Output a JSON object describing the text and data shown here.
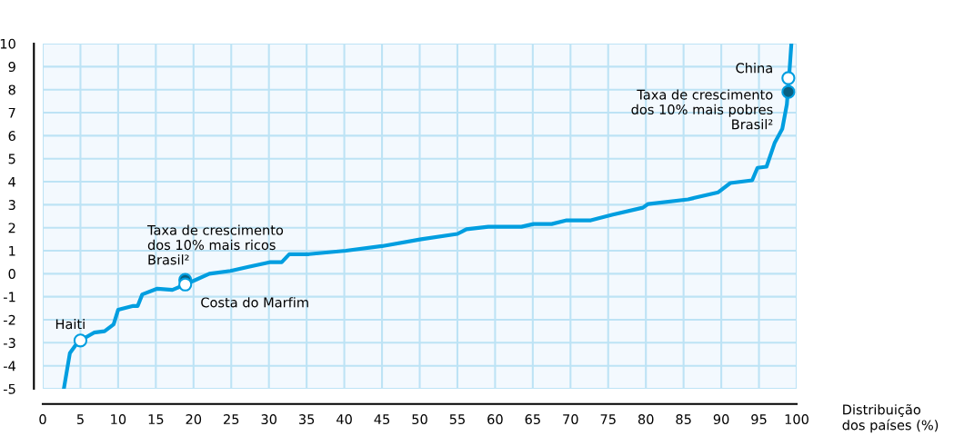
{
  "chart_data": {
    "type": "line",
    "xlabel": "Distribuição\ndos países (%)",
    "xlim": [
      0,
      100
    ],
    "ylim": [
      -5,
      10
    ],
    "xticks": [
      0,
      5,
      10,
      15,
      20,
      25,
      30,
      35,
      40,
      45,
      50,
      55,
      60,
      65,
      70,
      75,
      80,
      85,
      90,
      95,
      100
    ],
    "yticks": [
      -5,
      -4,
      -3,
      -2,
      -1,
      0,
      1,
      2,
      3,
      4,
      5,
      6,
      7,
      8,
      9,
      10
    ],
    "grid": true,
    "legend": false,
    "series": [
      {
        "color": "#009ee0",
        "x": [
          2.8,
          3.6,
          4.6,
          5.0,
          6.8,
          8.2,
          9.4,
          10.0,
          12.0,
          12.6,
          13.2,
          15.2,
          17.2,
          18.9,
          22.1,
          24.9,
          27.3,
          30.1,
          31.7,
          32.7,
          35.3,
          40.2,
          45.0,
          50.2,
          55.0,
          56.2,
          59.1,
          63.5,
          65.1,
          67.5,
          69.5,
          72.7,
          75.5,
          79.6,
          80.3,
          85.6,
          89.6,
          91.2,
          94.1,
          94.8,
          96.0,
          97.1,
          98.1,
          98.7,
          98.9,
          99.1,
          99.3
        ],
        "values": [
          -5.0,
          -3.45,
          -3.0,
          -2.9,
          -2.56,
          -2.5,
          -2.2,
          -1.57,
          -1.4,
          -1.4,
          -0.9,
          -0.65,
          -0.7,
          -0.47,
          0.0,
          0.12,
          0.3,
          0.5,
          0.5,
          0.85,
          0.85,
          1.0,
          1.2,
          1.5,
          1.73,
          1.93,
          2.04,
          2.04,
          2.16,
          2.16,
          2.32,
          2.32,
          2.56,
          2.87,
          3.03,
          3.23,
          3.54,
          3.94,
          4.06,
          4.6,
          4.65,
          5.7,
          6.3,
          7.36,
          8.2,
          9.05,
          10.0
        ]
      },
      {
        "type": "scatter",
        "color": "#0a5f80",
        "x": [
          18.9,
          98.9
        ],
        "values": [
          -0.27,
          7.9
        ]
      },
      {
        "type": "scatter",
        "color": "#ffffff",
        "x": [
          5.0,
          18.9,
          98.9
        ],
        "values": [
          -2.9,
          -0.47,
          8.5
        ]
      }
    ],
    "annotations": [
      {
        "text": "Haiti",
        "x": 5.0,
        "y": -2.9
      },
      {
        "text": "Costa do Marfim",
        "x": 18.9,
        "y": -0.47
      },
      {
        "text": "Taxa de crescimento\ndos 10% mais ricos\nBrasil²",
        "x": 18.9,
        "y": -0.27
      },
      {
        "text": "China",
        "x": 98.9,
        "y": 8.5
      },
      {
        "text": "Taxa de crescimento\ndos 10% mais pobres\nBrasil²",
        "x": 98.9,
        "y": 7.9
      }
    ]
  }
}
